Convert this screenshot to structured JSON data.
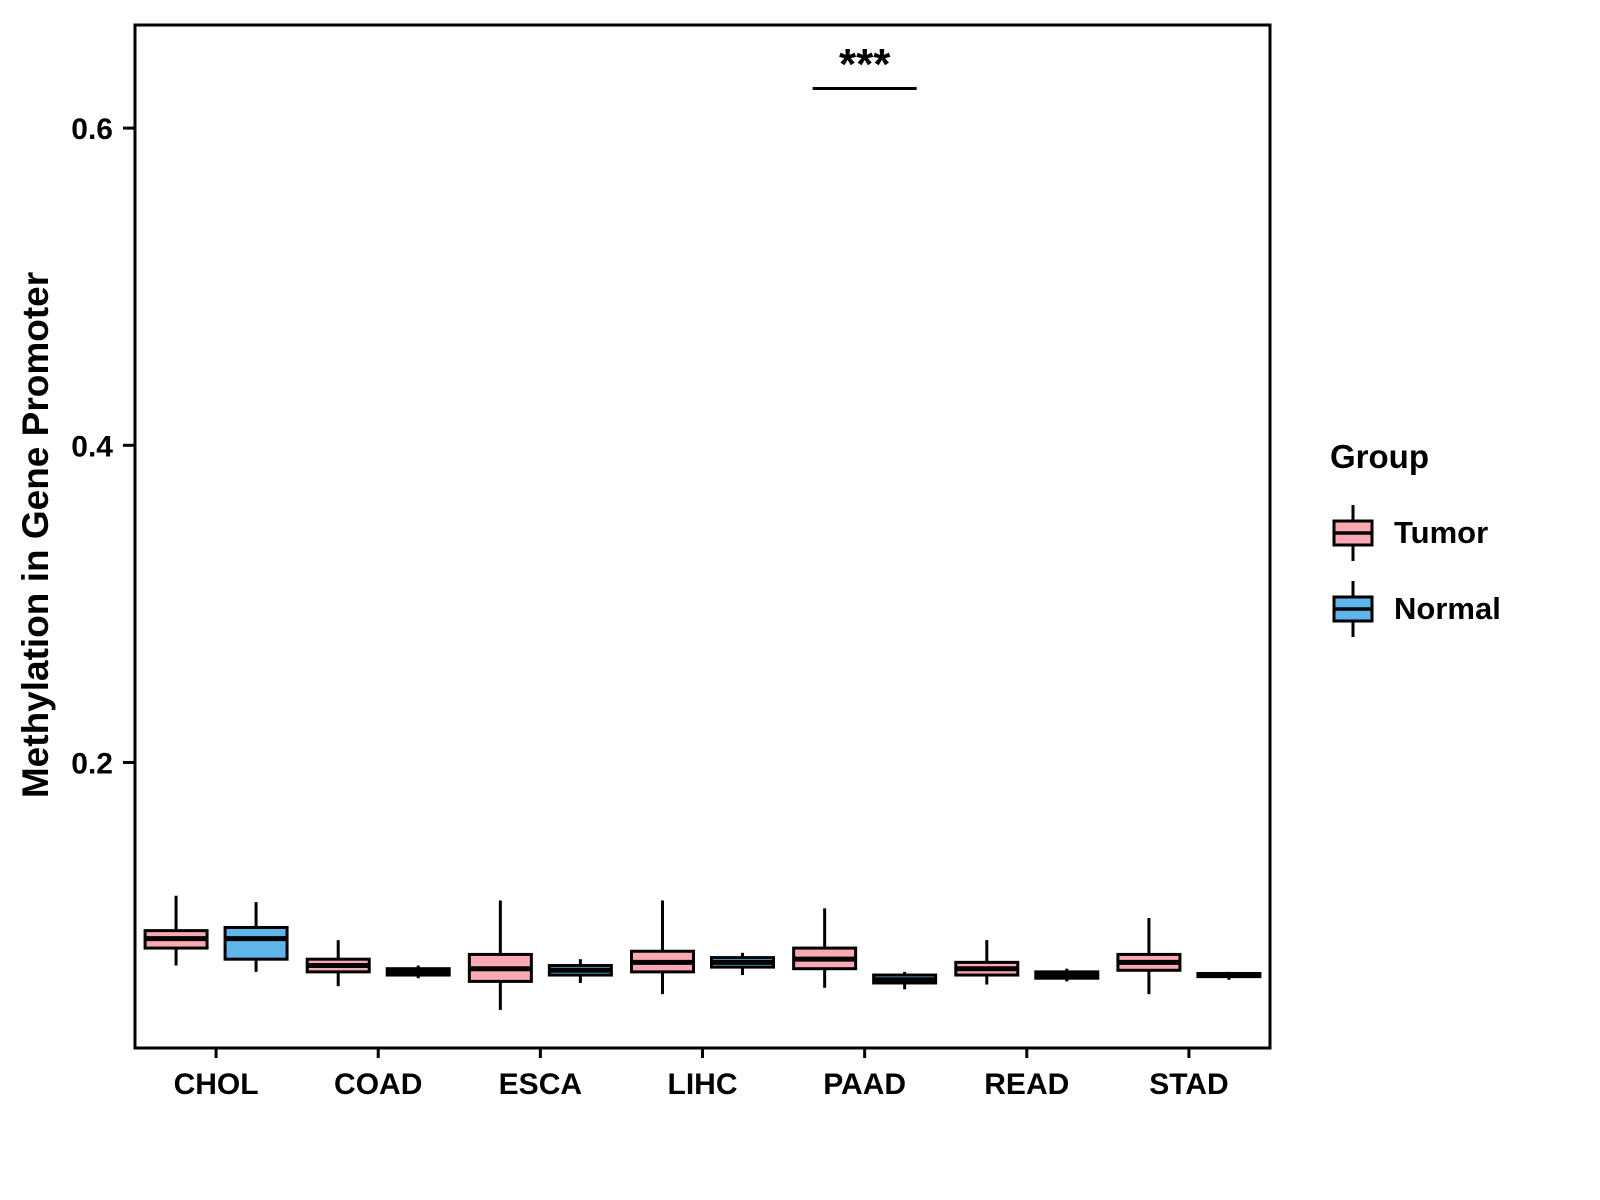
{
  "chart_data": {
    "type": "boxplot",
    "title": "",
    "xlabel": "",
    "ylabel": "Methylation in Gene Promoter",
    "legend_title": "Group",
    "legend_position": "right",
    "grid": false,
    "ylim": [
      0.02,
      0.665
    ],
    "yticks": [
      0.2,
      0.4,
      0.6
    ],
    "ytick_labels": [
      "0.2",
      "0.4",
      "0.6"
    ],
    "categories": [
      "CHOL",
      "COAD",
      "ESCA",
      "LIHC",
      "PAAD",
      "READ",
      "STAD"
    ],
    "groups": [
      {
        "name": "Tumor",
        "color": "#F9A8B4"
      },
      {
        "name": "Normal",
        "color": "#5FB4E9"
      }
    ],
    "series": [
      {
        "group": "Tumor",
        "boxes": [
          {
            "category": "CHOL",
            "low": 0.072,
            "q1": 0.083,
            "median": 0.089,
            "q3": 0.094,
            "high": 0.116
          },
          {
            "category": "COAD",
            "low": 0.059,
            "q1": 0.068,
            "median": 0.072,
            "q3": 0.076,
            "high": 0.088
          },
          {
            "category": "ESCA",
            "low": 0.044,
            "q1": 0.062,
            "median": 0.07,
            "q3": 0.079,
            "high": 0.113
          },
          {
            "category": "LIHC",
            "low": 0.054,
            "q1": 0.068,
            "median": 0.074,
            "q3": 0.081,
            "high": 0.113
          },
          {
            "category": "PAAD",
            "low": 0.058,
            "q1": 0.07,
            "median": 0.076,
            "q3": 0.083,
            "high": 0.108
          },
          {
            "category": "READ",
            "low": 0.06,
            "q1": 0.066,
            "median": 0.07,
            "q3": 0.074,
            "high": 0.088
          },
          {
            "category": "STAD",
            "low": 0.054,
            "q1": 0.069,
            "median": 0.074,
            "q3": 0.079,
            "high": 0.102
          }
        ]
      },
      {
        "group": "Normal",
        "boxes": [
          {
            "category": "CHOL",
            "low": 0.068,
            "q1": 0.076,
            "median": 0.089,
            "q3": 0.096,
            "high": 0.112
          },
          {
            "category": "COAD",
            "low": 0.064,
            "q1": 0.066,
            "median": 0.068,
            "q3": 0.07,
            "high": 0.072
          },
          {
            "category": "ESCA",
            "low": 0.061,
            "q1": 0.066,
            "median": 0.069,
            "q3": 0.072,
            "high": 0.076
          },
          {
            "category": "LIHC",
            "low": 0.066,
            "q1": 0.071,
            "median": 0.074,
            "q3": 0.077,
            "high": 0.08
          },
          {
            "category": "PAAD",
            "low": 0.057,
            "q1": 0.061,
            "median": 0.063,
            "q3": 0.066,
            "high": 0.068
          },
          {
            "category": "READ",
            "low": 0.062,
            "q1": 0.064,
            "median": 0.066,
            "q3": 0.068,
            "high": 0.07
          },
          {
            "category": "STAD",
            "low": 0.063,
            "q1": 0.065,
            "median": 0.066,
            "q3": 0.067,
            "high": 0.068
          }
        ]
      }
    ],
    "annotation": {
      "text": "***",
      "category": "PAAD",
      "line_y": 0.625,
      "text_y": 0.631
    }
  }
}
